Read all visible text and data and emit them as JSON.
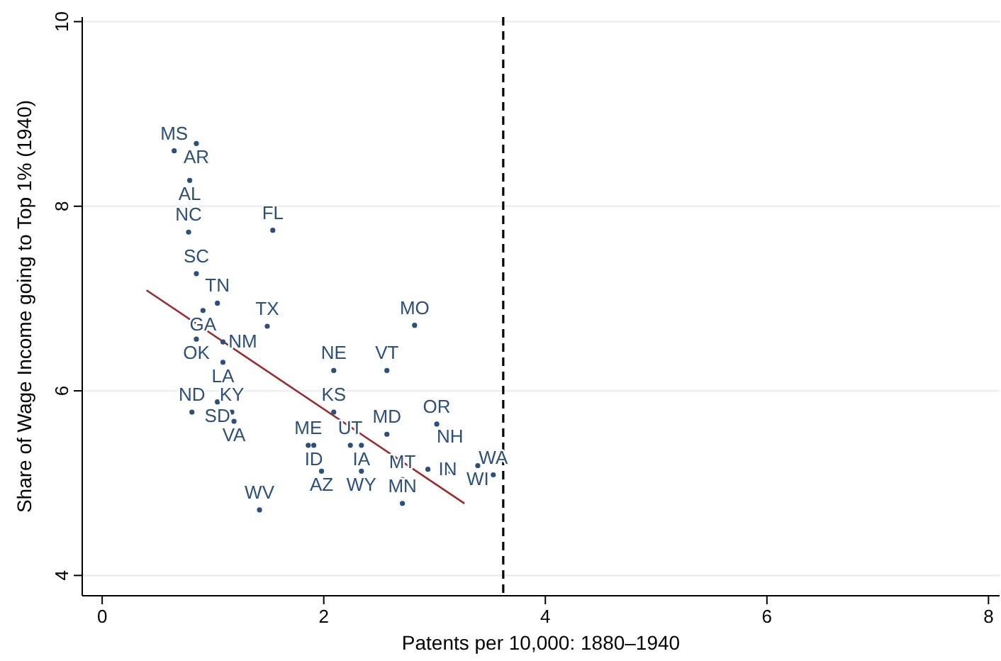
{
  "chart_data": {
    "type": "scatter",
    "xlabel": "Patents per 10,000: 1880–1940",
    "ylabel": "Share of Wage Income going to Top 1% (1940)",
    "xlim": [
      -0.18,
      8.1
    ],
    "ylim": [
      3.78,
      10.05
    ],
    "xticks": [
      0,
      2,
      4,
      6,
      8
    ],
    "yticks": [
      4,
      6,
      8,
      10
    ],
    "grid": "y",
    "ref_lines": [
      {
        "axis": "x",
        "value": 3.62,
        "color": "#000000",
        "line_style": "dashed"
      }
    ],
    "series": [
      {
        "marker": "circle",
        "color": "#2c4f7c",
        "x": [
          0.65,
          0.85,
          0.79,
          0.78,
          1.54,
          0.85,
          1.04,
          0.91,
          1.49,
          2.82,
          0.85,
          1.09,
          1.09,
          2.09,
          2.57,
          0.81,
          1.04,
          1.17,
          1.19,
          2.09,
          2.57,
          3.02,
          1.86,
          1.91,
          2.24,
          2.34,
          1.98,
          2.34,
          2.71,
          2.71,
          2.94,
          3.14,
          3.39,
          3.53,
          1.42
        ],
        "values": [
          8.6,
          8.68,
          8.28,
          7.72,
          7.74,
          7.27,
          6.95,
          6.87,
          6.7,
          6.71,
          6.56,
          6.53,
          6.31,
          6.22,
          6.22,
          5.77,
          5.88,
          5.77,
          5.67,
          5.77,
          5.53,
          5.64,
          5.41,
          5.41,
          5.41,
          5.41,
          5.13,
          5.13,
          5.04,
          4.78,
          5.15,
          5.13,
          5.19,
          5.09,
          4.71
        ],
        "value_labels": [
          "MS",
          "AR",
          "AL",
          "NC",
          "FL",
          "SC",
          "TN",
          "GA",
          "TX",
          "MO",
          "OK",
          "NM",
          "LA",
          "NE",
          "VT",
          "ND",
          "SD",
          "KY",
          "VA",
          "KS",
          "MD",
          "OR",
          "ME",
          "ID",
          "UT",
          "IA",
          "AZ",
          "WY",
          "MT",
          "MN",
          "IN",
          "NH",
          "WI",
          "WA",
          "WV"
        ]
      },
      {
        "type": "line",
        "color": "#9b2a2a",
        "x": [
          0.4,
          3.27
        ],
        "values": [
          7.09,
          4.78
        ]
      }
    ]
  }
}
